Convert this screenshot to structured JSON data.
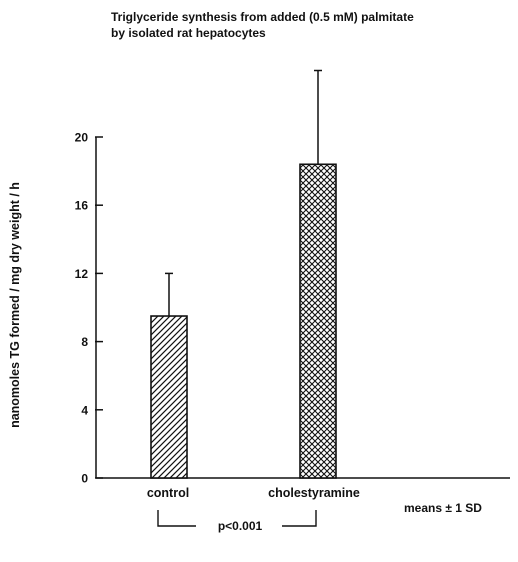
{
  "chart_data": {
    "type": "bar",
    "title_lines": [
      "Triglyceride synthesis from added (0.5 mM) palmitate",
      "by isolated rat hepatocytes"
    ],
    "ylabel": "nanomoles TG formed / mg dry weight / h",
    "xlabel": "",
    "categories": [
      "control",
      "cholestyramine"
    ],
    "values": [
      9.5,
      18.4
    ],
    "error_sd": [
      2.5,
      5.5
    ],
    "ylim": [
      0,
      22
    ],
    "yticks": [
      0,
      4,
      8,
      12,
      16,
      20
    ],
    "bar_patterns": [
      "diagonal-hatch",
      "cross-hatch"
    ],
    "significance": "p<0.001",
    "error_note": "means ± 1 SD",
    "grid": false,
    "legend": "none"
  }
}
